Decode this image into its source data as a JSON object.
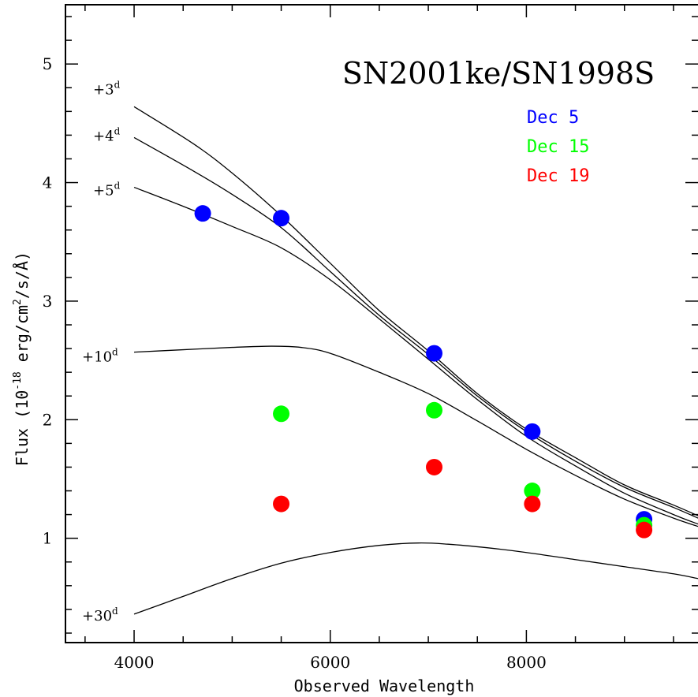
{
  "chart_data": {
    "type": "scatter",
    "title": "SN2001ke/SN1998S",
    "xlabel": "Observed Wavelength",
    "ylabel_main": "Flux (10",
    "ylabel_exp": "-18",
    "ylabel_unit": " erg/cm",
    "ylabel_sq": "2",
    "ylabel_tail": "/s/Å)",
    "xlim": [
      3300,
      9750
    ],
    "ylim": [
      0.12,
      5.5
    ],
    "x_ticks": [
      4000,
      6000,
      8000
    ],
    "y_ticks": [
      1,
      2,
      3,
      4,
      5
    ],
    "x_minor_step": 500,
    "y_minor_step": 0.2,
    "legend_position": "top-right",
    "series": [
      {
        "name": "Dec 5",
        "color": "#0000ff",
        "points": [
          [
            4700,
            3.74
          ],
          [
            5500,
            3.7
          ],
          [
            7060,
            2.56
          ],
          [
            8060,
            1.9
          ],
          [
            9200,
            1.16
          ]
        ]
      },
      {
        "name": "Dec 15",
        "color": "#00ff00",
        "points": [
          [
            5500,
            2.05
          ],
          [
            7060,
            2.08
          ],
          [
            8060,
            1.4
          ],
          [
            9200,
            1.11
          ]
        ]
      },
      {
        "name": "Dec 19",
        "color": "#ff0000",
        "points": [
          [
            5500,
            1.29
          ],
          [
            7060,
            1.6
          ],
          [
            8060,
            1.29
          ],
          [
            9200,
            1.07
          ]
        ]
      }
    ],
    "model_curves": [
      {
        "label": "+3",
        "sup": "d",
        "points": [
          [
            4000,
            4.64
          ],
          [
            4600,
            4.33
          ],
          [
            5000,
            4.08
          ],
          [
            5500,
            3.72
          ],
          [
            6000,
            3.32
          ],
          [
            6500,
            2.92
          ],
          [
            7000,
            2.58
          ],
          [
            7500,
            2.22
          ],
          [
            8000,
            1.92
          ],
          [
            8500,
            1.68
          ],
          [
            9000,
            1.45
          ],
          [
            9500,
            1.28
          ],
          [
            9750,
            1.19
          ]
        ]
      },
      {
        "label": "+4",
        "sup": "d",
        "points": [
          [
            4000,
            4.38
          ],
          [
            4600,
            4.1
          ],
          [
            5000,
            3.9
          ],
          [
            5500,
            3.62
          ],
          [
            6000,
            3.25
          ],
          [
            6500,
            2.88
          ],
          [
            7000,
            2.55
          ],
          [
            7500,
            2.2
          ],
          [
            8000,
            1.9
          ],
          [
            8500,
            1.65
          ],
          [
            9000,
            1.43
          ],
          [
            9500,
            1.26
          ],
          [
            9750,
            1.17
          ]
        ]
      },
      {
        "label": "+5",
        "sup": "d",
        "points": [
          [
            4000,
            3.96
          ],
          [
            4500,
            3.8
          ],
          [
            5000,
            3.63
          ],
          [
            5500,
            3.45
          ],
          [
            6000,
            3.18
          ],
          [
            6500,
            2.85
          ],
          [
            7000,
            2.51
          ],
          [
            7500,
            2.17
          ],
          [
            8000,
            1.86
          ],
          [
            8500,
            1.61
          ],
          [
            9000,
            1.38
          ],
          [
            9500,
            1.2
          ],
          [
            9750,
            1.12
          ]
        ]
      },
      {
        "label": "+10",
        "sup": "d",
        "points": [
          [
            4000,
            2.57
          ],
          [
            4500,
            2.59
          ],
          [
            5000,
            2.61
          ],
          [
            5400,
            2.62
          ],
          [
            5700,
            2.61
          ],
          [
            6000,
            2.56
          ],
          [
            6500,
            2.4
          ],
          [
            7000,
            2.22
          ],
          [
            7500,
            1.99
          ],
          [
            8000,
            1.75
          ],
          [
            8500,
            1.53
          ],
          [
            9000,
            1.33
          ],
          [
            9500,
            1.17
          ],
          [
            9750,
            1.1
          ]
        ]
      },
      {
        "label": "+30",
        "sup": "d",
        "points": [
          [
            4000,
            0.36
          ],
          [
            4500,
            0.51
          ],
          [
            5000,
            0.66
          ],
          [
            5500,
            0.79
          ],
          [
            6000,
            0.88
          ],
          [
            6500,
            0.94
          ],
          [
            6900,
            0.96
          ],
          [
            7200,
            0.95
          ],
          [
            7600,
            0.92
          ],
          [
            8000,
            0.88
          ],
          [
            8500,
            0.82
          ],
          [
            9000,
            0.76
          ],
          [
            9500,
            0.7
          ],
          [
            9750,
            0.66
          ]
        ]
      }
    ]
  }
}
